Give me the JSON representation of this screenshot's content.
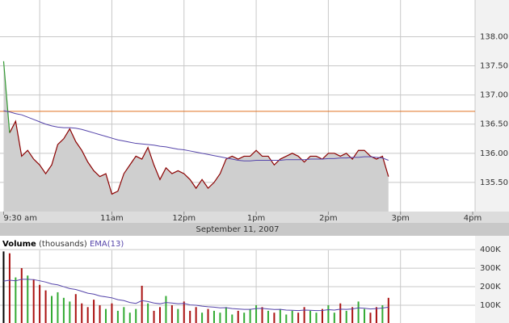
{
  "chart_data": [
    {
      "type": "area",
      "x": [
        570,
        575,
        580,
        585,
        590,
        595,
        600,
        605,
        610,
        615,
        620,
        625,
        630,
        635,
        640,
        645,
        650,
        655,
        660,
        665,
        670,
        675,
        680,
        685,
        690,
        695,
        700,
        705,
        710,
        715,
        720,
        725,
        730,
        735,
        740,
        745,
        750,
        755,
        760,
        765,
        770,
        775,
        780,
        785,
        790,
        795,
        800,
        805,
        810,
        815,
        820,
        825,
        830,
        835,
        840,
        845,
        850,
        855,
        860,
        865,
        870,
        875,
        880,
        885,
        890
      ],
      "series": [
        {
          "color": "#8b0000",
          "first_segment_color": "#339933",
          "fill": "#cfcfcf",
          "values": [
            137.58,
            136.35,
            136.55,
            135.95,
            136.05,
            135.9,
            135.8,
            135.65,
            135.8,
            136.15,
            136.25,
            136.42,
            136.2,
            136.05,
            135.85,
            135.7,
            135.6,
            135.65,
            135.3,
            135.35,
            135.65,
            135.8,
            135.95,
            135.9,
            136.1,
            135.8,
            135.55,
            135.75,
            135.65,
            135.7,
            135.65,
            135.55,
            135.4,
            135.55,
            135.4,
            135.5,
            135.65,
            135.9,
            135.95,
            135.9,
            135.95,
            135.95,
            136.05,
            135.95,
            135.95,
            135.8,
            135.9,
            135.95,
            136.0,
            135.95,
            135.85,
            135.95,
            135.95,
            135.9,
            136.0,
            136.0,
            135.95,
            136.0,
            135.9,
            136.05,
            136.05,
            135.95,
            135.9,
            135.95,
            135.6
          ]
        },
        {
          "color": "#5544aa",
          "values": [
            136.73,
            136.71,
            136.68,
            136.66,
            136.62,
            136.58,
            136.54,
            136.5,
            136.47,
            136.45,
            136.44,
            136.44,
            136.43,
            136.41,
            136.38,
            136.35,
            136.32,
            136.29,
            136.26,
            136.23,
            136.21,
            136.19,
            136.17,
            136.16,
            136.15,
            136.14,
            136.12,
            136.11,
            136.09,
            136.07,
            136.06,
            136.04,
            136.02,
            136.0,
            135.98,
            135.96,
            135.94,
            135.92,
            135.9,
            135.88,
            135.87,
            135.87,
            135.88,
            135.88,
            135.88,
            135.88,
            135.88,
            135.89,
            135.89,
            135.89,
            135.89,
            135.9,
            135.9,
            135.9,
            135.91,
            135.91,
            135.92,
            135.92,
            135.93,
            135.93,
            135.94,
            135.94,
            135.93,
            135.92,
            135.88
          ]
        }
      ],
      "reference_line": {
        "value": 136.72,
        "color": "#e07020"
      },
      "xlim": [
        567,
        962
      ],
      "xticks": [
        {
          "value": 570,
          "label": "9:30 am"
        },
        {
          "value": 660,
          "label": "11am"
        },
        {
          "value": 720,
          "label": "12pm"
        },
        {
          "value": 780,
          "label": "1pm"
        },
        {
          "value": 840,
          "label": "2pm"
        },
        {
          "value": 900,
          "label": "3pm"
        },
        {
          "value": 960,
          "label": "4pm"
        }
      ],
      "xgrid": [
        600,
        660,
        720,
        780,
        840,
        900
      ],
      "xlabel": "September 11, 2007",
      "ylim": [
        135.0,
        138.63
      ],
      "yticks": [
        {
          "value": 135.5,
          "label": "135.50"
        },
        {
          "value": 136,
          "label": "136.00"
        },
        {
          "value": 136.5,
          "label": "136.50"
        },
        {
          "value": 137,
          "label": "137.00"
        },
        {
          "value": 137.5,
          "label": "137.50"
        },
        {
          "value": 138,
          "label": "138.00"
        }
      ],
      "grid": true
    },
    {
      "type": "bar",
      "title": "Volume",
      "subtitle": "(thousands)",
      "x": [
        570,
        575,
        580,
        585,
        590,
        595,
        600,
        605,
        610,
        615,
        620,
        625,
        630,
        635,
        640,
        645,
        650,
        655,
        660,
        665,
        670,
        675,
        680,
        685,
        690,
        695,
        700,
        705,
        710,
        715,
        720,
        725,
        730,
        735,
        740,
        745,
        750,
        755,
        760,
        765,
        770,
        775,
        780,
        785,
        790,
        795,
        800,
        805,
        810,
        815,
        820,
        825,
        830,
        835,
        840,
        845,
        850,
        855,
        860,
        865,
        870,
        875,
        880,
        885,
        890
      ],
      "series": [
        {
          "colors": {
            "first": "#000000",
            "up": "#33aa33",
            "down": "#aa1111"
          },
          "values": [
            390000,
            380000,
            250000,
            300000,
            260000,
            240000,
            210000,
            180000,
            150000,
            170000,
            140000,
            120000,
            160000,
            110000,
            90000,
            130000,
            100000,
            80000,
            110000,
            70000,
            90000,
            60000,
            80000,
            205000,
            110000,
            70000,
            90000,
            150000,
            100000,
            80000,
            120000,
            70000,
            90000,
            60000,
            80000,
            70000,
            60000,
            90000,
            50000,
            70000,
            60000,
            80000,
            100000,
            90000,
            70000,
            60000,
            80000,
            50000,
            70000,
            60000,
            90000,
            70000,
            60000,
            80000,
            100000,
            60000,
            110000,
            70000,
            90000,
            120000,
            80000,
            60000,
            90000,
            100000,
            140000
          ]
        },
        {
          "name": "EMA(13)",
          "color": "#5544aa",
          "values": [
            230000,
            235000,
            232000,
            240000,
            240000,
            238000,
            232000,
            225000,
            215000,
            210000,
            200000,
            190000,
            185000,
            175000,
            165000,
            160000,
            150000,
            145000,
            140000,
            130000,
            125000,
            115000,
            110000,
            125000,
            120000,
            112000,
            108000,
            115000,
            112000,
            108000,
            110000,
            102000,
            100000,
            95000,
            92000,
            90000,
            86000,
            87000,
            82000,
            80000,
            78000,
            78000,
            82000,
            83000,
            80000,
            77000,
            78000,
            74000,
            73000,
            71000,
            74000,
            73000,
            71000,
            72000,
            76000,
            74000,
            79000,
            78000,
            80000,
            86000,
            84000,
            80000,
            82000,
            85000,
            90000
          ]
        }
      ],
      "ylim": [
        0,
        470000
      ],
      "yticks": [
        {
          "value": 100000,
          "label": "100K"
        },
        {
          "value": 200000,
          "label": "200K"
        },
        {
          "value": 300000,
          "label": "300K"
        },
        {
          "value": 400000,
          "label": "400K"
        }
      ],
      "grid": true
    }
  ]
}
